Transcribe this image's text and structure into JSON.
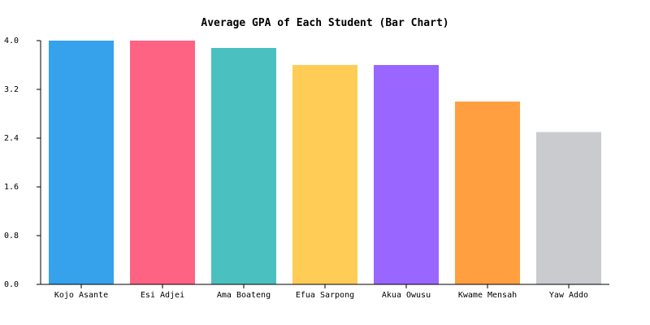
{
  "chart_data": {
    "type": "bar",
    "title": "Average GPA of Each Student (Bar Chart)",
    "xlabel": "",
    "ylabel": "",
    "categories": [
      "Kojo Asante",
      "Esi Adjei",
      "Ama Boateng",
      "Efua Sarpong",
      "Akua Owusu",
      "Kwame Mensah",
      "Yaw Addo"
    ],
    "values": [
      4.0,
      4.0,
      3.88,
      3.6,
      3.6,
      3.0,
      2.5
    ],
    "colors": [
      "#36a2eb",
      "#ff6384",
      "#4bc0c0",
      "#ffcd56",
      "#9966ff",
      "#ff9f40",
      "#c9cbcf"
    ],
    "ylim": [
      0,
      4.0
    ],
    "yticks": [
      "0.0",
      "0.8",
      "1.6",
      "2.4",
      "3.2",
      "4.0"
    ],
    "grid": false,
    "legend": "none"
  }
}
